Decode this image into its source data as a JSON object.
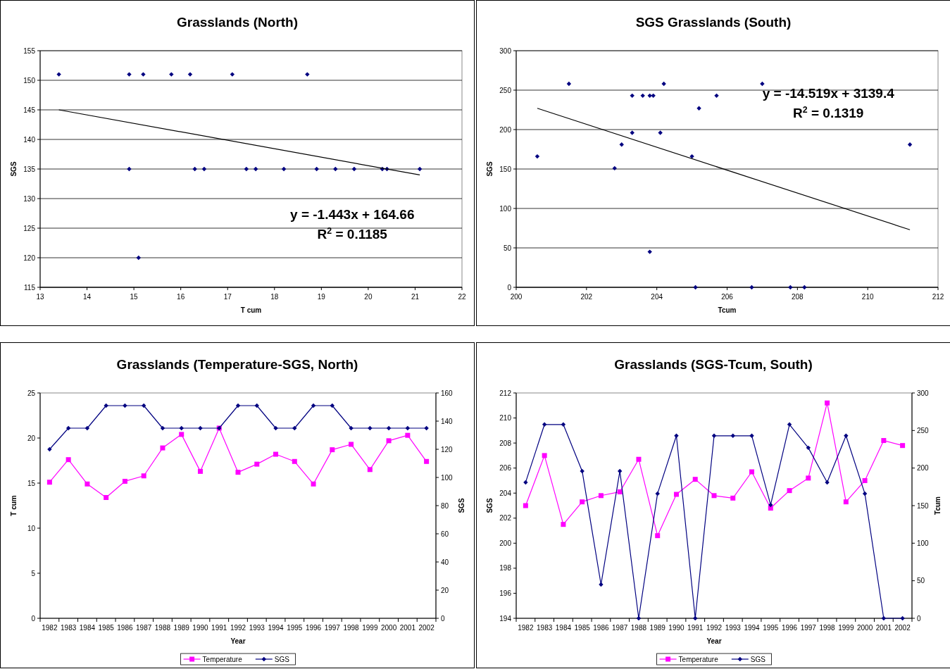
{
  "chart_data": [
    {
      "type": "scatter",
      "title": "Grasslands (North)",
      "xlabel": "T cum",
      "ylabel": "SGS",
      "xlim": [
        13,
        22
      ],
      "xticks": [
        13,
        14,
        15,
        16,
        17,
        18,
        19,
        20,
        21,
        22
      ],
      "ylim": [
        115,
        155
      ],
      "yticks": [
        115,
        120,
        125,
        130,
        135,
        140,
        145,
        150,
        155
      ],
      "grid": "y",
      "legend": false,
      "marker": "diamond",
      "series": [
        {
          "color": "#000080",
          "x": [
            13.4,
            14.9,
            15.2,
            15.8,
            16.2,
            17.1,
            18.7,
            14.9,
            16.3,
            16.5,
            17.4,
            17.6,
            18.2,
            18.9,
            19.3,
            19.7,
            20.3,
            20.4,
            21.1,
            15.1
          ],
          "values": [
            151,
            151,
            151,
            151,
            151,
            151,
            151,
            135,
            135,
            135,
            135,
            135,
            135,
            135,
            135,
            135,
            135,
            135,
            135,
            120
          ]
        },
        {
          "type": "line",
          "color": "#000000",
          "marker": "none",
          "x": [
            13.4,
            21.1
          ],
          "values": [
            145,
            134
          ]
        }
      ],
      "annotations": [
        "y = -1.443x + 164.66",
        "R$^{2}$ = 0.1185"
      ]
    },
    {
      "type": "scatter",
      "title": "SGS Grasslands (South)",
      "xlabel": "Tcum",
      "ylabel": "SGS",
      "xlim": [
        200,
        212
      ],
      "xticks": [
        200,
        202,
        204,
        206,
        208,
        210,
        212
      ],
      "ylim": [
        0,
        300
      ],
      "yticks": [
        0,
        50,
        100,
        150,
        200,
        250,
        300
      ],
      "grid": "y",
      "legend": false,
      "marker": "diamond",
      "series": [
        {
          "color": "#000080",
          "x": [
            203.0,
            207.0,
            201.5,
            203.3,
            203.8,
            204.1,
            206.7,
            200.6,
            203.9,
            205.1,
            203.8,
            203.6,
            205.7,
            202.8,
            204.2,
            205.2,
            211.2,
            203.3,
            205.0,
            208.2,
            207.8
          ],
          "values": [
            181,
            258,
            258,
            196,
            45,
            196,
            0,
            166,
            243,
            0,
            243,
            243,
            243,
            151,
            258,
            227,
            181,
            243,
            166,
            0,
            0
          ]
        },
        {
          "type": "line",
          "color": "#000000",
          "marker": "none",
          "x": [
            200.6,
            211.2
          ],
          "values": [
            227,
            73
          ]
        }
      ],
      "annotations": [
        "y = -14.519x + 3139.4",
        "R$^{2}$ = 0.1319"
      ]
    },
    {
      "type": "line",
      "title": "Grasslands (Temperature-SGS, North)",
      "xlabel": "Year",
      "ylabel": "T cum",
      "y2label": "SGS",
      "categories": [
        "1982",
        "1983",
        "1984",
        "1985",
        "1986",
        "1987",
        "1988",
        "1989",
        "1990",
        "1991",
        "1992",
        "1993",
        "1994",
        "1995",
        "1996",
        "1997",
        "1998",
        "1999",
        "2000",
        "2001",
        "2002"
      ],
      "ylim": [
        0,
        25
      ],
      "yticks": [
        0,
        5,
        10,
        15,
        20,
        25
      ],
      "y2lim": [
        0,
        160
      ],
      "y2ticks": [
        0,
        20,
        40,
        60,
        80,
        100,
        120,
        140,
        160
      ],
      "grid": false,
      "legend": "bottom",
      "series": [
        {
          "name": "Temperature",
          "color": "#ff00ff",
          "marker": "square",
          "values": [
            15.1,
            17.6,
            14.9,
            13.4,
            15.2,
            15.8,
            18.9,
            20.4,
            16.3,
            21.1,
            16.2,
            17.1,
            18.2,
            17.4,
            14.9,
            18.7,
            19.3,
            16.5,
            19.7,
            20.3,
            17.4
          ]
        },
        {
          "name": "SGS",
          "color": "#000080",
          "marker": "diamond",
          "axis": "y2",
          "values": [
            120,
            135,
            135,
            151,
            151,
            151,
            135,
            135,
            135,
            135,
            151,
            151,
            135,
            135,
            151,
            151,
            135,
            135,
            135,
            135,
            135
          ]
        }
      ]
    },
    {
      "type": "line",
      "title": "Grasslands (SGS-Tcum, South)",
      "xlabel": "Year",
      "ylabel": "SGS",
      "y2label": "Tcum",
      "categories": [
        "1982",
        "1983",
        "1984",
        "1985",
        "1986",
        "1987",
        "1988",
        "1989",
        "1990",
        "1991",
        "1992",
        "1993",
        "1994",
        "1995",
        "1996",
        "1997",
        "1998",
        "1999",
        "2000",
        "2001",
        "2002"
      ],
      "ylim": [
        194,
        212
      ],
      "yticks": [
        194,
        196,
        198,
        200,
        202,
        204,
        206,
        208,
        210,
        212
      ],
      "y2lim": [
        0,
        300
      ],
      "y2ticks": [
        0,
        50,
        100,
        150,
        200,
        250,
        300
      ],
      "grid": false,
      "legend": "bottom",
      "series": [
        {
          "name": "Temperature",
          "color": "#ff00ff",
          "marker": "square",
          "values": [
            203.0,
            207.0,
            201.5,
            203.3,
            203.8,
            204.1,
            206.7,
            200.6,
            203.9,
            205.1,
            203.8,
            203.6,
            205.7,
            202.8,
            204.2,
            205.2,
            211.2,
            203.3,
            205.0,
            208.2,
            207.8
          ]
        },
        {
          "name": "SGS",
          "color": "#000080",
          "marker": "diamond",
          "axis": "y2",
          "values": [
            181,
            258,
            258,
            196,
            45,
            196,
            0,
            166,
            243,
            0,
            243,
            243,
            243,
            151,
            258,
            227,
            181,
            243,
            166,
            0,
            0
          ]
        }
      ]
    }
  ]
}
